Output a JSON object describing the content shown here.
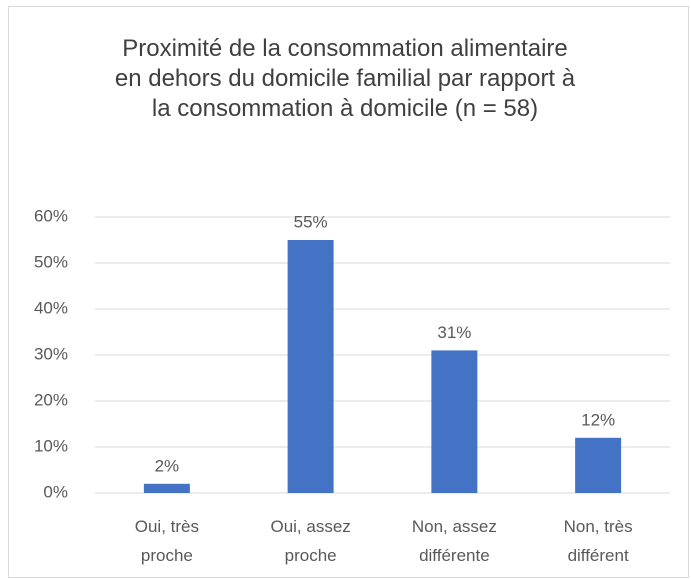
{
  "chart_data": {
    "type": "bar",
    "title": "Proximité de la consommation alimentaire en dehors du domicile familial par rapport à la consommation à domicile (n = 58)",
    "categories": [
      "Oui, très proche",
      "Oui, assez proche",
      "Non, assez différente",
      "Non, très différent"
    ],
    "values": [
      2,
      55,
      31,
      12
    ],
    "value_labels": [
      "2%",
      "55%",
      "31%",
      "12%"
    ],
    "color": "#4472c4",
    "ylim": [
      0,
      60
    ],
    "yticks": [
      {
        "value": 0,
        "label": "0%"
      },
      {
        "value": 10,
        "label": "10%"
      },
      {
        "value": 20,
        "label": "20%"
      },
      {
        "value": 30,
        "label": "30%"
      },
      {
        "value": 40,
        "label": "40%"
      },
      {
        "value": 50,
        "label": "50%"
      },
      {
        "value": 60,
        "label": "60%"
      }
    ],
    "grid": true
  }
}
